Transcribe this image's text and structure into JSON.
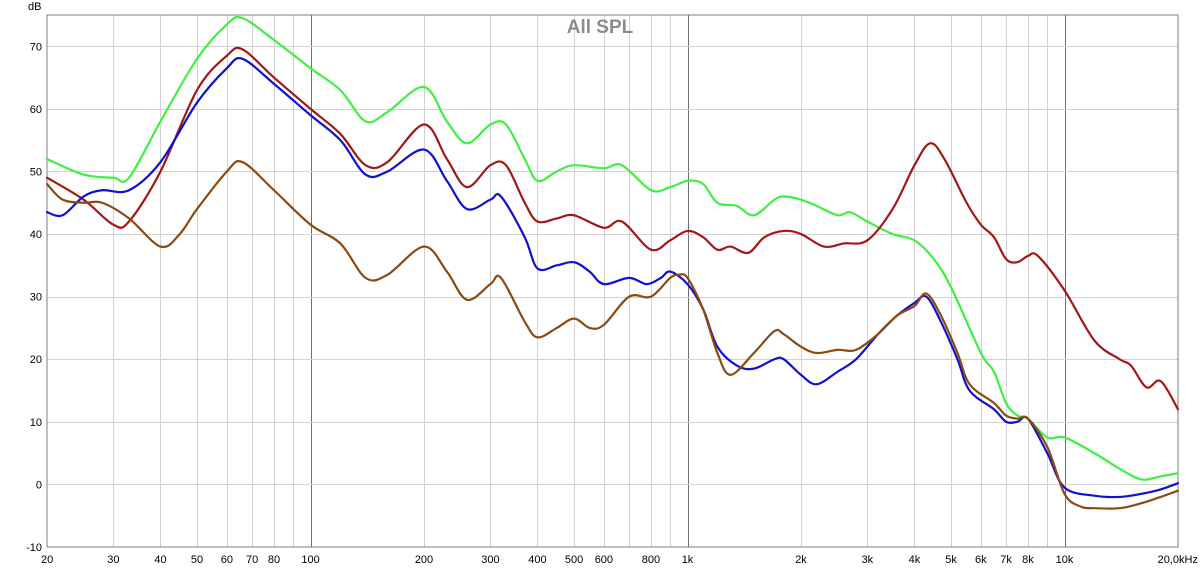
{
  "chart_data": {
    "type": "line",
    "title": "All SPL",
    "ylabel": "dB",
    "xlabel": "",
    "x_scale": "log",
    "xlim": [
      20,
      20000
    ],
    "ylim": [
      -10,
      75
    ],
    "grid": true,
    "y_ticks": [
      {
        "value": -10,
        "label": "-10"
      },
      {
        "value": 0,
        "label": "0"
      },
      {
        "value": 10,
        "label": "10"
      },
      {
        "value": 20,
        "label": "20"
      },
      {
        "value": 30,
        "label": "30"
      },
      {
        "value": 40,
        "label": "40"
      },
      {
        "value": 50,
        "label": "50"
      },
      {
        "value": 60,
        "label": "60"
      },
      {
        "value": 70,
        "label": "70"
      }
    ],
    "x_ticks": [
      {
        "value": 20,
        "label": "20"
      },
      {
        "value": 30,
        "label": "30"
      },
      {
        "value": 40,
        "label": "40"
      },
      {
        "value": 50,
        "label": "50"
      },
      {
        "value": 60,
        "label": "60"
      },
      {
        "value": 70,
        "label": "70"
      },
      {
        "value": 80,
        "label": "80"
      },
      {
        "value": 100,
        "label": "100"
      },
      {
        "value": 200,
        "label": "200"
      },
      {
        "value": 300,
        "label": "300"
      },
      {
        "value": 400,
        "label": "400"
      },
      {
        "value": 500,
        "label": "500"
      },
      {
        "value": 600,
        "label": "600"
      },
      {
        "value": 800,
        "label": "800"
      },
      {
        "value": 1000,
        "label": "1k"
      },
      {
        "value": 2000,
        "label": "2k"
      },
      {
        "value": 3000,
        "label": "3k"
      },
      {
        "value": 4000,
        "label": "4k"
      },
      {
        "value": 5000,
        "label": "5k"
      },
      {
        "value": 6000,
        "label": "6k"
      },
      {
        "value": 7000,
        "label": "7k"
      },
      {
        "value": 8000,
        "label": "8k"
      },
      {
        "value": 10000,
        "label": "10k"
      },
      {
        "value": 20000,
        "label": "20,0kHz"
      }
    ],
    "series": [
      {
        "color": "#40f040",
        "points": [
          [
            20,
            52
          ],
          [
            25,
            49.5
          ],
          [
            30,
            49
          ],
          [
            33,
            49
          ],
          [
            40,
            58
          ],
          [
            50,
            68
          ],
          [
            60,
            73.5
          ],
          [
            66,
            74.5
          ],
          [
            80,
            71
          ],
          [
            100,
            66.5
          ],
          [
            120,
            63
          ],
          [
            140,
            58
          ],
          [
            160,
            59.5
          ],
          [
            200,
            63.5
          ],
          [
            230,
            58
          ],
          [
            260,
            54.5
          ],
          [
            300,
            57.5
          ],
          [
            330,
            57.5
          ],
          [
            370,
            52
          ],
          [
            400,
            48.5
          ],
          [
            450,
            50
          ],
          [
            500,
            51
          ],
          [
            600,
            50.5
          ],
          [
            670,
            51
          ],
          [
            800,
            47
          ],
          [
            900,
            47.5
          ],
          [
            1000,
            48.5
          ],
          [
            1100,
            48
          ],
          [
            1200,
            45
          ],
          [
            1350,
            44.5
          ],
          [
            1500,
            43
          ],
          [
            1700,
            45.5
          ],
          [
            1800,
            46
          ],
          [
            2000,
            45.5
          ],
          [
            2200,
            44.5
          ],
          [
            2500,
            43
          ],
          [
            2700,
            43.5
          ],
          [
            3000,
            42
          ],
          [
            3500,
            40
          ],
          [
            4000,
            39
          ],
          [
            4500,
            36
          ],
          [
            5000,
            31.5
          ],
          [
            6000,
            21
          ],
          [
            6500,
            18
          ],
          [
            7000,
            13
          ],
          [
            7500,
            11
          ],
          [
            8000,
            10.5
          ],
          [
            9000,
            7.5
          ],
          [
            10000,
            7.5
          ],
          [
            12000,
            5
          ],
          [
            14000,
            2.5
          ],
          [
            16000,
            0.8
          ],
          [
            18000,
            1.3
          ],
          [
            20000,
            1.8
          ]
        ]
      },
      {
        "color": "#a01818",
        "points": [
          [
            20,
            49
          ],
          [
            25,
            45.5
          ],
          [
            30,
            41.5
          ],
          [
            33,
            42
          ],
          [
            40,
            50
          ],
          [
            50,
            63
          ],
          [
            60,
            68.5
          ],
          [
            66,
            69.5
          ],
          [
            80,
            65
          ],
          [
            100,
            60
          ],
          [
            120,
            56
          ],
          [
            140,
            51
          ],
          [
            160,
            51.5
          ],
          [
            200,
            57.5
          ],
          [
            230,
            52
          ],
          [
            260,
            47.5
          ],
          [
            300,
            51
          ],
          [
            330,
            51
          ],
          [
            370,
            45
          ],
          [
            400,
            42
          ],
          [
            450,
            42.5
          ],
          [
            500,
            43
          ],
          [
            600,
            41
          ],
          [
            670,
            42
          ],
          [
            800,
            37.5
          ],
          [
            900,
            39
          ],
          [
            1000,
            40.5
          ],
          [
            1100,
            39.5
          ],
          [
            1200,
            37.5
          ],
          [
            1300,
            38
          ],
          [
            1450,
            37
          ],
          [
            1600,
            39.5
          ],
          [
            1800,
            40.5
          ],
          [
            2000,
            40
          ],
          [
            2300,
            38
          ],
          [
            2600,
            38.5
          ],
          [
            3000,
            39
          ],
          [
            3500,
            44
          ],
          [
            4000,
            51
          ],
          [
            4400,
            54.5
          ],
          [
            4800,
            52
          ],
          [
            5500,
            45
          ],
          [
            6000,
            41.5
          ],
          [
            6500,
            39.5
          ],
          [
            7000,
            36
          ],
          [
            7500,
            35.5
          ],
          [
            8000,
            36.5
          ],
          [
            8500,
            36.5
          ],
          [
            10000,
            31
          ],
          [
            12000,
            23
          ],
          [
            14000,
            20
          ],
          [
            15000,
            19
          ],
          [
            16500,
            15.5
          ],
          [
            18000,
            16.5
          ],
          [
            20000,
            12
          ]
        ]
      },
      {
        "color": "#1010d0",
        "points": [
          [
            20,
            43.5
          ],
          [
            22,
            43
          ],
          [
            25,
            46
          ],
          [
            28,
            47
          ],
          [
            33,
            47
          ],
          [
            40,
            51.5
          ],
          [
            50,
            61
          ],
          [
            60,
            66.5
          ],
          [
            66,
            68
          ],
          [
            80,
            64
          ],
          [
            100,
            59
          ],
          [
            120,
            55
          ],
          [
            140,
            49.5
          ],
          [
            160,
            50
          ],
          [
            200,
            53.5
          ],
          [
            230,
            48.5
          ],
          [
            260,
            44
          ],
          [
            300,
            45.5
          ],
          [
            320,
            46
          ],
          [
            370,
            39.5
          ],
          [
            400,
            34.5
          ],
          [
            450,
            35
          ],
          [
            500,
            35.5
          ],
          [
            550,
            34
          ],
          [
            600,
            32
          ],
          [
            700,
            33
          ],
          [
            780,
            32
          ],
          [
            850,
            33
          ],
          [
            900,
            34
          ],
          [
            1000,
            32
          ],
          [
            1100,
            28
          ],
          [
            1200,
            22
          ],
          [
            1350,
            19
          ],
          [
            1500,
            18.5
          ],
          [
            1700,
            20
          ],
          [
            1800,
            20
          ],
          [
            2000,
            17.5
          ],
          [
            2200,
            16
          ],
          [
            2500,
            18
          ],
          [
            2800,
            20
          ],
          [
            3200,
            24
          ],
          [
            3600,
            27
          ],
          [
            4000,
            29
          ],
          [
            4300,
            30
          ],
          [
            4700,
            26
          ],
          [
            5200,
            20
          ],
          [
            5600,
            15
          ],
          [
            6500,
            12
          ],
          [
            7000,
            10
          ],
          [
            7500,
            10
          ],
          [
            8000,
            10.5
          ],
          [
            9000,
            5
          ],
          [
            10000,
            -0.5
          ],
          [
            12000,
            -1.8
          ],
          [
            14000,
            -2
          ],
          [
            16000,
            -1.5
          ],
          [
            18000,
            -0.8
          ],
          [
            20000,
            0.2
          ]
        ]
      },
      {
        "color": "#8c4a10",
        "points": [
          [
            20,
            48
          ],
          [
            22,
            45.5
          ],
          [
            25,
            45
          ],
          [
            28,
            45
          ],
          [
            33,
            42.5
          ],
          [
            40,
            38
          ],
          [
            45,
            40
          ],
          [
            50,
            44
          ],
          [
            60,
            50
          ],
          [
            66,
            51.5
          ],
          [
            80,
            47
          ],
          [
            100,
            41.5
          ],
          [
            120,
            38.5
          ],
          [
            140,
            33
          ],
          [
            160,
            33.5
          ],
          [
            200,
            38
          ],
          [
            230,
            34
          ],
          [
            260,
            29.5
          ],
          [
            300,
            32
          ],
          [
            320,
            33
          ],
          [
            370,
            26
          ],
          [
            400,
            23.5
          ],
          [
            450,
            25
          ],
          [
            500,
            26.5
          ],
          [
            550,
            25
          ],
          [
            600,
            25.5
          ],
          [
            700,
            30
          ],
          [
            800,
            30
          ],
          [
            900,
            33
          ],
          [
            950,
            33.5
          ],
          [
            1000,
            33
          ],
          [
            1100,
            28
          ],
          [
            1200,
            21
          ],
          [
            1300,
            17.5
          ],
          [
            1500,
            21
          ],
          [
            1700,
            24.5
          ],
          [
            1800,
            24
          ],
          [
            2000,
            22
          ],
          [
            2200,
            21
          ],
          [
            2500,
            21.5
          ],
          [
            2800,
            21.5
          ],
          [
            3200,
            24
          ],
          [
            3600,
            27
          ],
          [
            4000,
            28.5
          ],
          [
            4300,
            30.5
          ],
          [
            4700,
            27
          ],
          [
            5200,
            21
          ],
          [
            5600,
            16
          ],
          [
            6500,
            13
          ],
          [
            7000,
            11
          ],
          [
            7500,
            10.5
          ],
          [
            8000,
            10.5
          ],
          [
            9000,
            6
          ],
          [
            10000,
            -1.5
          ],
          [
            11000,
            -3.5
          ],
          [
            12000,
            -3.8
          ],
          [
            14000,
            -3.8
          ],
          [
            16000,
            -3
          ],
          [
            18000,
            -2
          ],
          [
            20000,
            -1
          ]
        ]
      }
    ]
  }
}
